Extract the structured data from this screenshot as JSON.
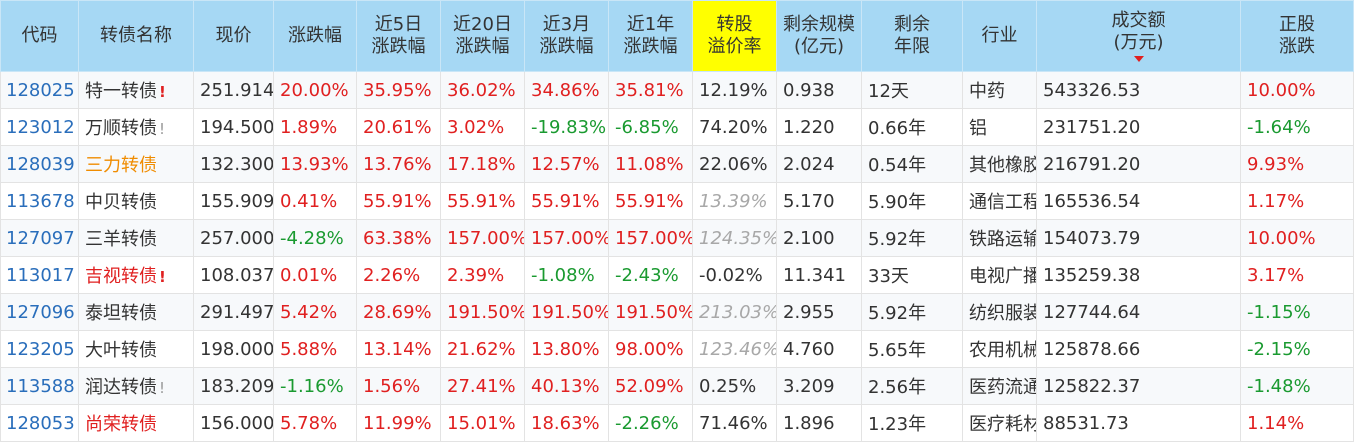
{
  "headers": {
    "code": "代码",
    "name": "转债名称",
    "price": "现价",
    "chg": "涨跌幅",
    "chg5_l1": "近5日",
    "chg5_l2": "涨跌幅",
    "chg20_l1": "近20日",
    "chg20_l2": "涨跌幅",
    "chg3m_l1": "近3月",
    "chg3m_l2": "涨跌幅",
    "chg1y_l1": "近1年",
    "chg1y_l2": "涨跌幅",
    "premium_l1": "转股",
    "premium_l2": "溢价率",
    "scale_l1": "剩余规模",
    "scale_l2": "(亿元)",
    "remain_l1": "剩余",
    "remain_l2": "年限",
    "industry": "行业",
    "volume_l1": "成交额",
    "volume_l2": "(万元)",
    "stock_l1": "正股",
    "stock_l2": "涨跌"
  },
  "colors": {
    "header_bg": "#a6d8f4",
    "highlight": "#ffff00",
    "up": "#e02020",
    "down": "#1a9a30",
    "code": "#2a6ebb",
    "warn": "#f08c00"
  },
  "rows": [
    {
      "code": "128025",
      "name": "特一转债",
      "mark": "!",
      "price": "251.914",
      "chg": "20.00%",
      "chg5": "35.95%",
      "chg20": "36.02%",
      "chg3m": "34.86%",
      "chg1y": "35.81%",
      "premium": "12.19%",
      "scale": "0.938",
      "remain": "12天",
      "industry": "中药",
      "volume": "543326.53",
      "stock": "10.00%"
    },
    {
      "code": "123012",
      "name": "万顺转债",
      "mark": "!",
      "price": "194.500",
      "chg": "1.89%",
      "chg5": "20.61%",
      "chg20": "3.02%",
      "chg3m": "-19.83%",
      "chg1y": "-6.85%",
      "premium": "74.20%",
      "scale": "1.220",
      "remain": "0.66年",
      "industry": "铝",
      "volume": "231751.20",
      "stock": "-1.64%"
    },
    {
      "code": "128039",
      "name": "三力转债",
      "mark": "",
      "price": "132.300",
      "chg": "13.93%",
      "chg5": "13.76%",
      "chg20": "17.18%",
      "chg3m": "12.57%",
      "chg1y": "11.08%",
      "premium": "22.06%",
      "scale": "2.024",
      "remain": "0.54年",
      "industry": "其他橡胶制品",
      "volume": "216791.20",
      "stock": "9.93%"
    },
    {
      "code": "113678",
      "name": "中贝转债",
      "mark": "",
      "price": "155.909",
      "chg": "0.41%",
      "chg5": "55.91%",
      "chg20": "55.91%",
      "chg3m": "55.91%",
      "chg1y": "55.91%",
      "premium": "13.39%",
      "scale": "5.170",
      "remain": "5.90年",
      "industry": "通信工程及服务",
      "volume": "165536.54",
      "stock": "1.17%"
    },
    {
      "code": "127097",
      "name": "三羊转债",
      "mark": "",
      "price": "257.000",
      "chg": "-4.28%",
      "chg5": "63.38%",
      "chg20": "157.00%",
      "chg3m": "157.00%",
      "chg1y": "157.00%",
      "premium": "124.35%",
      "scale": "2.100",
      "remain": "5.92年",
      "industry": "铁路运输",
      "volume": "154073.79",
      "stock": "10.00%"
    },
    {
      "code": "113017",
      "name": "吉视转债",
      "mark": "!",
      "price": "108.037",
      "chg": "0.01%",
      "chg5": "2.26%",
      "chg20": "2.39%",
      "chg3m": "-1.08%",
      "chg1y": "-2.43%",
      "premium": "-0.02%",
      "scale": "11.341",
      "remain": "33天",
      "industry": "电视广播",
      "volume": "135259.38",
      "stock": "3.17%"
    },
    {
      "code": "127096",
      "name": "泰坦转债",
      "mark": "",
      "price": "291.497",
      "chg": "5.42%",
      "chg5": "28.69%",
      "chg20": "191.50%",
      "chg3m": "191.50%",
      "chg1y": "191.50%",
      "premium": "213.03%",
      "scale": "2.955",
      "remain": "5.92年",
      "industry": "纺织服装设备",
      "volume": "127744.64",
      "stock": "-1.15%"
    },
    {
      "code": "123205",
      "name": "大叶转债",
      "mark": "",
      "price": "198.000",
      "chg": "5.88%",
      "chg5": "13.14%",
      "chg20": "21.62%",
      "chg3m": "13.80%",
      "chg1y": "98.00%",
      "premium": "123.46%",
      "scale": "4.760",
      "remain": "5.65年",
      "industry": "农用机械",
      "volume": "125878.66",
      "stock": "-2.15%"
    },
    {
      "code": "113588",
      "name": "润达转债",
      "mark": "!",
      "price": "183.209",
      "chg": "-1.16%",
      "chg5": "1.56%",
      "chg20": "27.41%",
      "chg3m": "40.13%",
      "chg1y": "52.09%",
      "premium": "0.25%",
      "scale": "3.209",
      "remain": "2.56年",
      "industry": "医药流通",
      "volume": "125822.37",
      "stock": "-1.48%"
    },
    {
      "code": "128053",
      "name": "尚荣转债",
      "mark": "",
      "price": "156.000",
      "chg": "5.78%",
      "chg5": "11.99%",
      "chg20": "15.01%",
      "chg3m": "18.63%",
      "chg1y": "-2.26%",
      "premium": "71.46%",
      "scale": "1.896",
      "remain": "1.23年",
      "industry": "医疗耗材",
      "volume": "88531.73",
      "stock": "1.14%"
    }
  ]
}
